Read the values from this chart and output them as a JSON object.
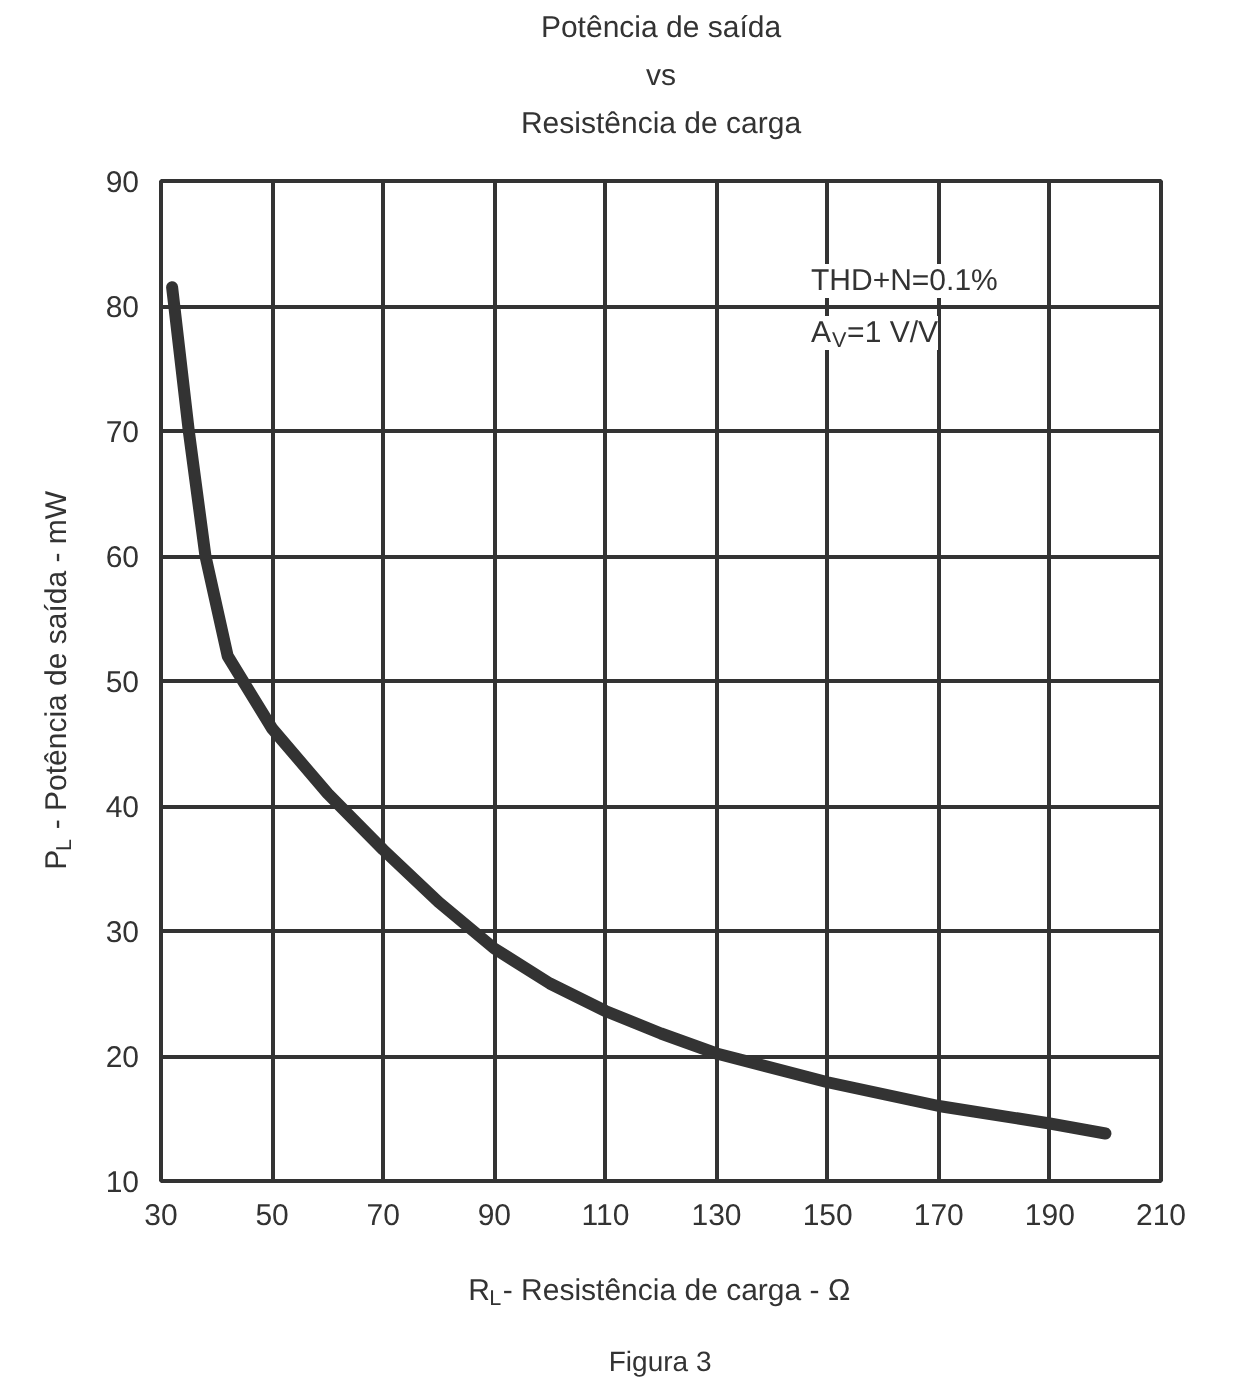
{
  "chart_data": {
    "type": "line",
    "title": "Potência de saída\nvs\nResistência de carga",
    "xlabel": "R$_{L}$- Resistência de carga - Ω",
    "ylabel": "P$_{L}$ - Potência de saída - mW",
    "annotations": [
      "THD+N=0.1%",
      "A$_{V}$=1 V/V",
      "Figura 3"
    ],
    "x": [
      32,
      35,
      38,
      42,
      50,
      60,
      70,
      80,
      90,
      100,
      110,
      120,
      130,
      150,
      170,
      190,
      200
    ],
    "series": [
      {
        "color": "#333333",
        "values": [
          81.5,
          70,
          60,
          52,
          46.2,
          41,
          36.5,
          32.3,
          28.6,
          25.8,
          23.6,
          21.8,
          20.2,
          17.9,
          16,
          14.6,
          13.8
        ]
      }
    ],
    "xlim": [
      30,
      210
    ],
    "ylim": [
      10,
      90
    ],
    "xticks": [
      30,
      50,
      70,
      90,
      110,
      130,
      150,
      170,
      190,
      210
    ],
    "yticks": [
      10,
      20,
      30,
      40,
      50,
      60,
      70,
      80,
      90
    ],
    "grid": true,
    "marker": "none",
    "line_style": "solid"
  }
}
